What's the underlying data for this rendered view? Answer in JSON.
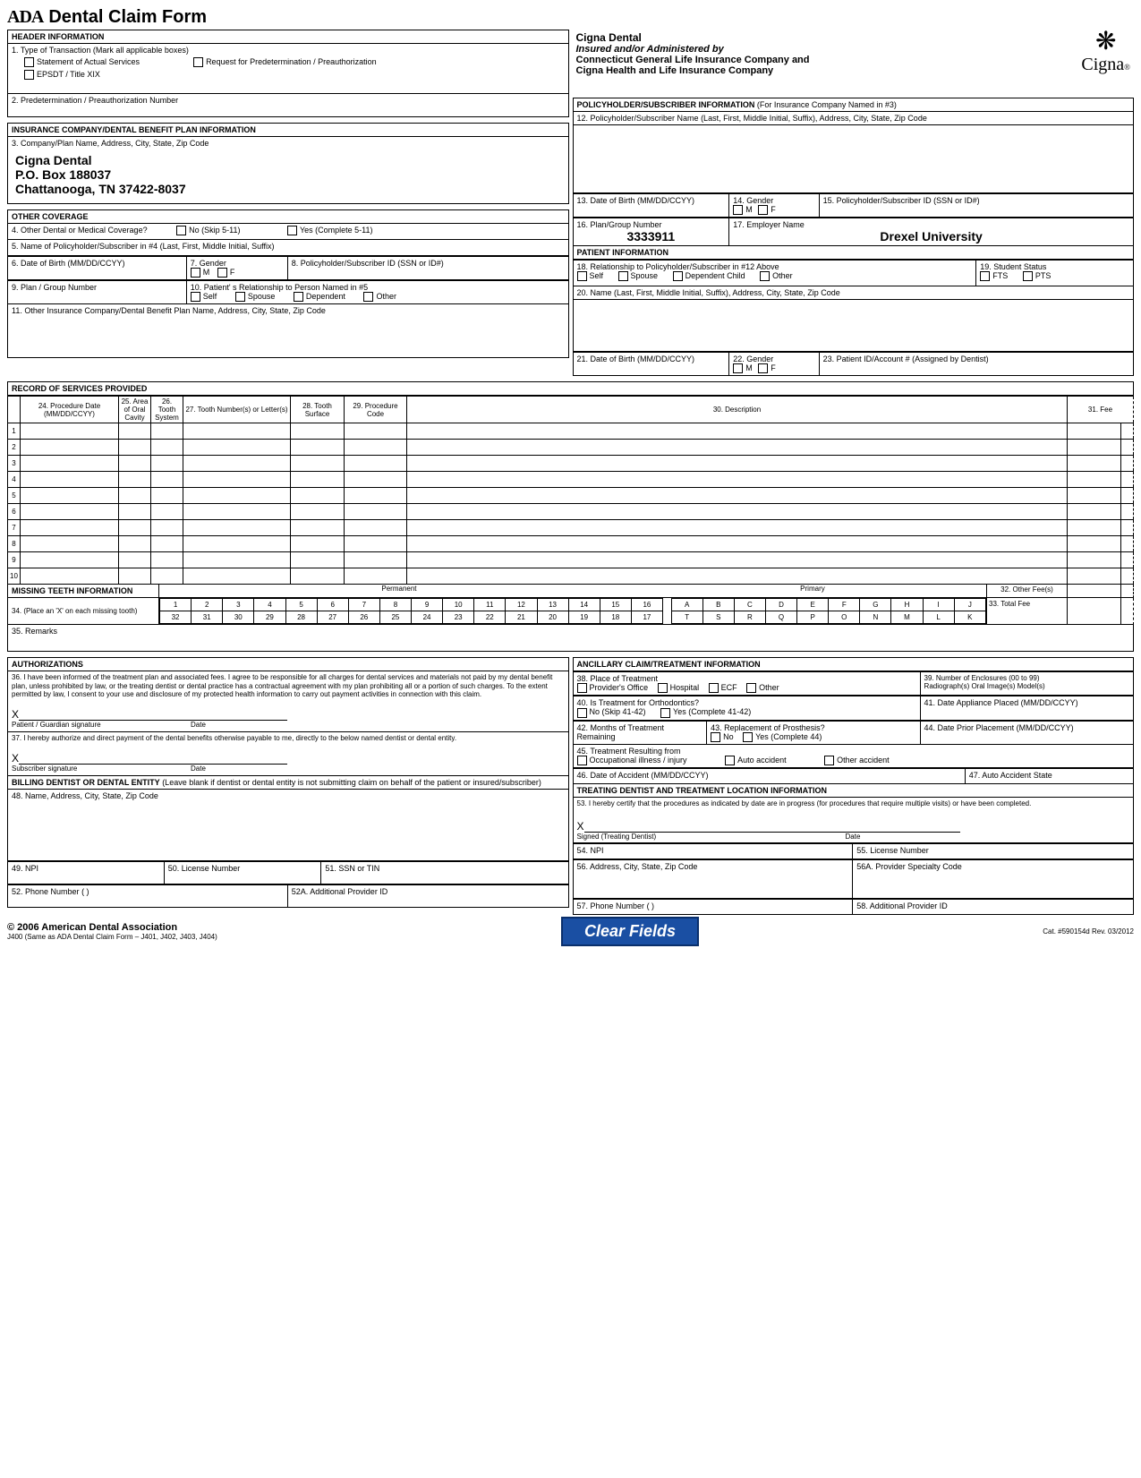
{
  "title": "Dental Claim Form",
  "ada_mark": "ADA",
  "header": {
    "section": "HEADER INFORMATION",
    "q1": "1. Type of Transaction (Mark all applicable boxes)",
    "opt_actual": "Statement of Actual Services",
    "opt_predet": "Request for Predetermination / Preauthorization",
    "opt_epsdt": "EPSDT /  Title XIX",
    "q2": "2. Predetermination / Preauthorization Number"
  },
  "cigna_header": {
    "name": "Cigna Dental",
    "line1": "Insured and/or Administered by",
    "line2": "Connecticut General Life Insurance Company and",
    "line3": "Cigna Health and Life Insurance Company",
    "logo_word": "Cigna",
    "logo_glyph": "❋"
  },
  "ins_plan": {
    "section": "INSURANCE COMPANY/DENTAL BENEFIT PLAN INFORMATION",
    "q3": "3. Company/Plan Name, Address, City, State, Zip Code",
    "addr1": "Cigna Dental",
    "addr2": "P.O. Box 188037",
    "addr3": "Chattanooga, TN  37422-8037"
  },
  "other_cov": {
    "section": "OTHER COVERAGE",
    "q4": "4. Other Dental or Medical Coverage?",
    "no": "No  (Skip 5-11)",
    "yes": "Yes (Complete 5-11)",
    "q5": "5. Name of Policyholder/Subscriber in #4 (Last, First, Middle Initial, Suffix)",
    "q6": "6. Date of Birth (MM/DD/CCYY)",
    "q7": "7. Gender",
    "m": "M",
    "f": "F",
    "q8": "8. Policyholder/Subscriber ID (SSN or ID#)",
    "q9": "9. Plan / Group Number",
    "q10": "10. Patient' s Relationship to Person Named in #5",
    "self": "Self",
    "spouse": "Spouse",
    "dep": "Dependent",
    "other": "Other",
    "q11": "11. Other Insurance Company/Dental Benefit Plan Name, Address, City, State, Zip Code"
  },
  "policyholder": {
    "section": "POLICYHOLDER/SUBSCRIBER INFORMATION",
    "section_note": "(For Insurance Company Named in #3)",
    "q12": "12. Policyholder/Subscriber Name (Last, First, Middle Initial, Suffix), Address, City, State, Zip Code",
    "q13": "13. Date of Birth (MM/DD/CCYY)",
    "q14": "14. Gender",
    "q15": "15. Policyholder/Subscriber ID (SSN or ID#)",
    "q16": "16. Plan/Group Number",
    "q16_val": "3333911",
    "q17": "17. Employer Name",
    "q17_val": "Drexel University"
  },
  "patient": {
    "section": "PATIENT INFORMATION",
    "q18": "18. Relationship to Policyholder/Subscriber in #12 Above",
    "self": "Self",
    "spouse": "Spouse",
    "depchild": "Dependent Child",
    "other": "Other",
    "q19": "19. Student Status",
    "fts": "FTS",
    "pts": "PTS",
    "q20": "20. Name (Last, First, Middle Initial, Suffix), Address, City, State, Zip Code",
    "q21": "21. Date of Birth (MM/DD/CCYY)",
    "q22": "22. Gender",
    "q23": "23. Patient ID/Account # (Assigned by Dentist)"
  },
  "services": {
    "section": "RECORD OF SERVICES PROVIDED",
    "c24": "24. Procedure Date (MM/DD/CCYY)",
    "c25": "25. Area of Oral Cavity",
    "c26": "26. Tooth System",
    "c27": "27. Tooth Number(s) or Letter(s)",
    "c28": "28. Tooth Surface",
    "c29": "29. Procedure Code",
    "c30": "30. Description",
    "c31": "31. Fee",
    "rows": [
      "1",
      "2",
      "3",
      "4",
      "5",
      "6",
      "7",
      "8",
      "9",
      "10"
    ]
  },
  "missing_teeth": {
    "section": "MISSING TEETH INFORMATION",
    "q34": "34. (Place an 'X' on each missing tooth)",
    "permanent": "Permanent",
    "primary": "Primary",
    "top": [
      "1",
      "2",
      "3",
      "4",
      "5",
      "6",
      "7",
      "8",
      "9",
      "10",
      "11",
      "12",
      "13",
      "14",
      "15",
      "16"
    ],
    "bot": [
      "32",
      "31",
      "30",
      "29",
      "28",
      "27",
      "26",
      "25",
      "24",
      "23",
      "22",
      "21",
      "20",
      "19",
      "18",
      "17"
    ],
    "ptop": [
      "A",
      "B",
      "C",
      "D",
      "E",
      "F",
      "G",
      "H",
      "I",
      "J"
    ],
    "pbot": [
      "T",
      "S",
      "R",
      "Q",
      "P",
      "O",
      "N",
      "M",
      "L",
      "K"
    ],
    "other": "32. Other Fee(s)",
    "total": "33. Total Fee"
  },
  "remarks": "35. Remarks",
  "auth": {
    "section": "AUTHORIZATIONS",
    "q36": "36. I have been informed of the treatment plan and associated fees. I agree to be responsible for all charges for dental services and materials not paid by my dental benefit plan, unless prohibited by law, or the treating dentist or dental practice has a contractual agreement with my plan prohibiting all or a portion of such charges. To the extent permitted by law, I consent to your use and disclosure of my protected health information to carry out payment activities in connection with this claim.",
    "sig1": "Patient / Guardian signature",
    "date": "Date",
    "q37": "37. I hereby authorize and direct payment of the dental benefits otherwise payable to me, directly to the below named dentist or dental entity.",
    "sig2": "Subscriber signature"
  },
  "ancillary": {
    "section": "ANCILLARY CLAIM/TREATMENT INFORMATION",
    "q38": "38. Place of Treatment",
    "office": "Provider's Office",
    "hosp": "Hospital",
    "ecf": "ECF",
    "other": "Other",
    "q39": "39. Number of Enclosures (00 to 99)",
    "q39s": "Radiograph(s)    Oral Image(s)      Model(s)",
    "q40": "40. Is Treatment for Orthodontics?",
    "no4142": "No  (Skip 41-42)",
    "yes4142": "Yes  (Complete 41-42)",
    "q41": "41. Date Appliance Placed (MM/DD/CCYY)",
    "q42": "42. Months of Treatment Remaining",
    "q43": "43. Replacement of Prosthesis?",
    "no43": "No",
    "yes43": "Yes (Complete 44)",
    "q44": "44. Date Prior Placement (MM/DD/CCYY)",
    "q45": "45. Treatment Resulting from",
    "occ": "Occupational illness / injury",
    "auto": "Auto accident",
    "othacc": "Other accident",
    "q46": "46. Date of Accident (MM/DD/CCYY)",
    "q47": "47. Auto Accident State"
  },
  "billing": {
    "section": "BILLING DENTIST OR DENTAL ENTITY",
    "section_note": "(Leave blank if dentist or dental entity is not submitting claim on behalf of the patient or insured/subscriber)",
    "q48": "48. Name, Address, City, State, Zip Code",
    "q49": "49. NPI",
    "q50": "50. License Number",
    "q51": "51. SSN or TIN",
    "q52": "52. Phone Number",
    "q52a": "52A. Additional Provider ID",
    "paren": "(              )"
  },
  "treating": {
    "section": "TREATING DENTIST AND TREATMENT LOCATION INFORMATION",
    "q53": "53. I hereby certify that the procedures as indicated by date are in progress (for procedures that require multiple visits) or have been completed.",
    "sig": "Signed (Treating Dentist)",
    "date": "Date",
    "q54": "54. NPI",
    "q55": "55. License Number",
    "q56": "56. Address, City, State, Zip Code",
    "q56a": "56A. Provider Specialty Code",
    "q57": "57. Phone Number",
    "q58": "58. Additional Provider ID",
    "paren": "(              )"
  },
  "footer": {
    "copyright": "© 2006 American Dental Association",
    "subline": "J400 (Same as ADA Dental Claim Form – J401, J402, J403, J404)",
    "btn": "Clear Fields",
    "catno": "Cat. #590154d   Rev. 03/2012"
  }
}
